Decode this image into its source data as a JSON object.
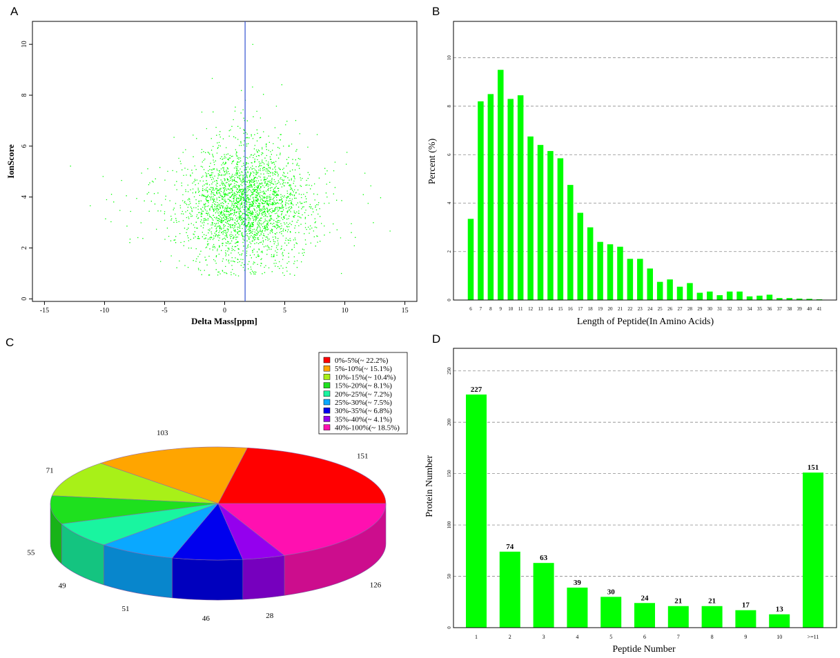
{
  "panels": {
    "A": "A",
    "B": "B",
    "C": "C",
    "D": "D"
  },
  "chart_data": [
    {
      "panel": "A",
      "type": "scatter",
      "xlabel": "Delta Mass[ppm]",
      "ylabel": "IonScore",
      "xlim": [
        -16,
        16
      ],
      "ylim": [
        -0.1,
        10.9
      ],
      "x_ticks": [
        -15,
        -10,
        -5,
        0,
        5,
        10,
        15
      ],
      "y_ticks": [
        0,
        2,
        4,
        6,
        8,
        10
      ],
      "point_color": "#00ff00",
      "vertical_line": {
        "x": 1.7,
        "color": "#3050d0"
      },
      "distribution": {
        "x_center": 1.7,
        "x_spread": 2.4,
        "y_center": 3.7,
        "y_spread": 1.1,
        "approx_points": 9000
      }
    },
    {
      "panel": "B",
      "type": "bar",
      "xlabel": "Length of Peptide(In Amino Acids)",
      "ylabel": "Percent (%)",
      "ylim": [
        0,
        11.5
      ],
      "y_ticks": [
        0,
        2,
        4,
        6,
        8,
        10
      ],
      "grid": "horizontal dashed",
      "bar_color": "#00ff00",
      "categories": [
        "6",
        "7",
        "8",
        "9",
        "10",
        "11",
        "12",
        "13",
        "14",
        "15",
        "16",
        "17",
        "18",
        "19",
        "20",
        "21",
        "22",
        "23",
        "24",
        "25",
        "26",
        "27",
        "28",
        "29",
        "30",
        "31",
        "32",
        "33",
        "34",
        "35",
        "36",
        "37",
        "38",
        "39",
        "40",
        "41"
      ],
      "values": [
        3.35,
        8.2,
        8.5,
        9.5,
        8.3,
        8.45,
        6.75,
        6.4,
        6.15,
        5.85,
        4.75,
        3.6,
        3.0,
        2.4,
        2.3,
        2.2,
        1.7,
        1.7,
        1.3,
        0.75,
        0.85,
        0.55,
        0.7,
        0.3,
        0.35,
        0.2,
        0.35,
        0.35,
        0.15,
        0.18,
        0.22,
        0.08,
        0.08,
        0.06,
        0.05,
        0.03
      ]
    },
    {
      "panel": "C",
      "type": "pie",
      "style": "3d",
      "legend_position": "top-right",
      "categories": [
        "0%-5%(~ 22.2%)",
        "5%-10%(~ 15.1%)",
        "10%-15%(~ 10.4%)",
        "15%-20%(~ 8.1%)",
        "20%-25%(~ 7.2%)",
        "25%-30%(~ 7.5%)",
        "30%-35%(~ 6.8%)",
        "35%-40%(~ 4.1%)",
        "40%-100%(~ 18.5%)"
      ],
      "values": [
        151,
        103,
        71,
        55,
        49,
        51,
        46,
        28,
        126
      ],
      "colors": [
        "#ff0000",
        "#ffa500",
        "#a8f018",
        "#1ee01e",
        "#19f5a0",
        "#0aa8ff",
        "#0000ee",
        "#9400ee",
        "#ff10b0"
      ],
      "labels": [
        "151",
        "103",
        "71",
        "55",
        "49",
        "51",
        "46",
        "28",
        "126"
      ]
    },
    {
      "panel": "D",
      "type": "bar",
      "xlabel": "Peptide Number",
      "ylabel": "Protein Number",
      "ylim": [
        0,
        272
      ],
      "y_ticks": [
        0,
        50,
        100,
        150,
        200,
        250
      ],
      "grid": "horizontal dashed",
      "bar_color": "#00ff00",
      "categories": [
        "1",
        "2",
        "3",
        "4",
        "5",
        "6",
        "7",
        "8",
        "9",
        "10",
        ">=11"
      ],
      "values": [
        227,
        74,
        63,
        39,
        30,
        24,
        21,
        21,
        17,
        13,
        151
      ]
    }
  ]
}
